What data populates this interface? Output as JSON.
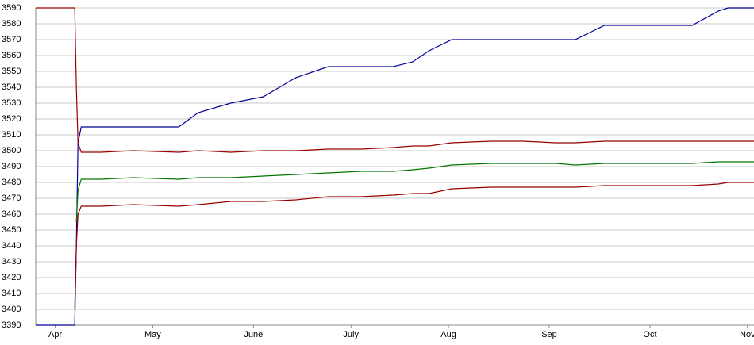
{
  "chart_data": {
    "type": "line",
    "x": [
      0,
      12,
      12.5,
      13,
      14,
      20,
      30,
      44,
      50,
      60,
      70,
      80,
      90,
      100,
      110,
      116,
      121,
      128,
      140,
      150,
      160,
      166,
      175,
      190,
      202,
      210,
      213,
      221
    ],
    "series": [
      {
        "color": "#000099",
        "values": [
          3390,
          3390,
          3440,
          3505,
          3515,
          3515,
          3515,
          3515,
          3524,
          3530,
          3534,
          3546,
          3553,
          3553,
          3553,
          3556,
          3563,
          3570,
          3570,
          3570,
          3570,
          3570,
          3579,
          3579,
          3579,
          3588,
          3590,
          3590
        ]
      },
      {
        "color": "#990000",
        "values": [
          3590,
          3590,
          3540,
          3505,
          3499,
          3499,
          3500,
          3499,
          3500,
          3499,
          3500,
          3500,
          3501,
          3501,
          3502,
          3503,
          3503,
          3505,
          3506,
          3506,
          3505,
          3505,
          3506,
          3506,
          3506,
          3506,
          3506,
          3506
        ]
      },
      {
        "color": "#007700",
        "values": [
          null,
          null,
          3455,
          3475,
          3482,
          3482,
          3483,
          3482,
          3483,
          3483,
          3484,
          3485,
          3486,
          3487,
          3487,
          3488,
          3489,
          3491,
          3492,
          3492,
          3492,
          3491,
          3492,
          3492,
          3492,
          3493,
          3493,
          3493
        ]
      },
      {
        "color": "#990000",
        "values": [
          null,
          3400,
          3440,
          3460,
          3465,
          3465,
          3466,
          3465,
          3466,
          3468,
          3468,
          3469,
          3471,
          3471,
          3472,
          3473,
          3473,
          3476,
          3477,
          3477,
          3477,
          3477,
          3478,
          3478,
          3478,
          3479,
          3480,
          3480
        ]
      }
    ],
    "xlim": [
      0,
      221
    ],
    "xticks": [
      {
        "value": 6,
        "label": "Apr"
      },
      {
        "value": 36,
        "label": "May"
      },
      {
        "value": 67,
        "label": "June"
      },
      {
        "value": 97,
        "label": "July"
      },
      {
        "value": 127,
        "label": "Aug"
      },
      {
        "value": 158,
        "label": "Sep"
      },
      {
        "value": 189,
        "label": "Oct"
      },
      {
        "value": 219,
        "label": "Nov"
      }
    ],
    "ylim": [
      3390,
      3590
    ],
    "yticks": [
      3390,
      3400,
      3410,
      3420,
      3430,
      3440,
      3450,
      3460,
      3470,
      3480,
      3490,
      3500,
      3510,
      3520,
      3530,
      3540,
      3550,
      3560,
      3570,
      3580,
      3590
    ],
    "grid": true
  }
}
